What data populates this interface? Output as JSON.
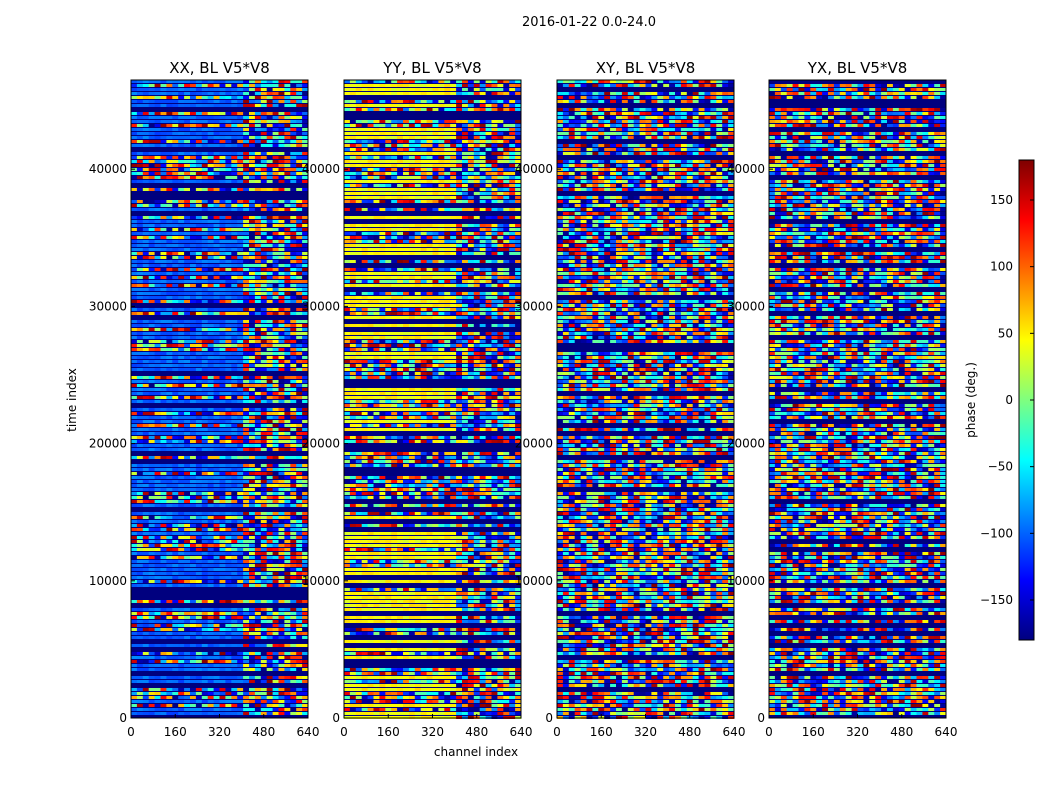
{
  "chart_data": {
    "type": "heatmap",
    "title": "2016-01-22 0.0-24.0",
    "xlabel": "channel index",
    "ylabel": "time index",
    "xlim": [
      0,
      640
    ],
    "ylim": [
      0,
      46500
    ],
    "x_ticks": [
      0,
      160,
      320,
      480,
      640
    ],
    "y_ticks": [
      0,
      10000,
      20000,
      30000,
      40000
    ],
    "panels": [
      {
        "title": "XX, BL V5*V8",
        "dominant_phase_deg": -100
      },
      {
        "title": "YY, BL V5*V8",
        "dominant_phase_deg": 45
      },
      {
        "title": "XY, BL V5*V8",
        "dominant_phase_deg": null
      },
      {
        "title": "YX, BL V5*V8",
        "dominant_phase_deg": null
      }
    ],
    "colorbar": {
      "label": "phase (deg.)",
      "range": [
        -180,
        180
      ],
      "ticks": [
        150,
        100,
        50,
        0,
        -50,
        -100,
        -150
      ],
      "tick_labels": [
        "150",
        "100",
        "50",
        "0",
        "−50",
        "−100",
        "−150"
      ],
      "colormap": "jet"
    },
    "colors": {
      "jet_stops": [
        "#00007f",
        "#0000ff",
        "#007fff",
        "#00ffff",
        "#7fff7f",
        "#ffff00",
        "#ff7f00",
        "#ff0000",
        "#7f0000"
      ]
    }
  }
}
